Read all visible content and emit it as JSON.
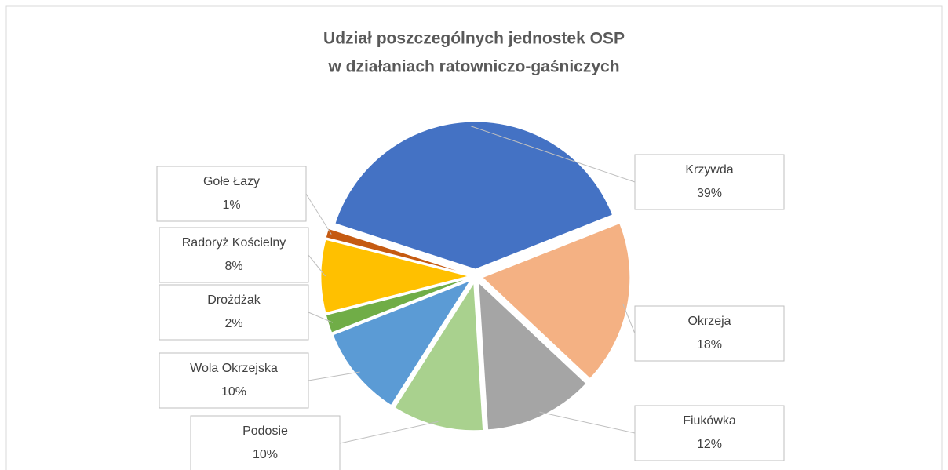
{
  "chart_data": {
    "type": "pie",
    "title": [
      "Udział poszczególnych jednostek OSP",
      "w działaniach ratowniczo-gaśniczych"
    ],
    "categories": [
      "Krzywda",
      "Okrzeja",
      "Fiukówka",
      "Podosie",
      "Wola Okrzejska",
      "Drożdżak",
      "Radoryż Kościelny",
      "Gołe Łazy"
    ],
    "values": [
      39,
      18,
      12,
      10,
      10,
      2,
      8,
      1
    ],
    "value_labels": [
      "39%",
      "18%",
      "12%",
      "10%",
      "10%",
      "2%",
      "8%",
      "1%"
    ],
    "colors": [
      "#4472c4",
      "#f4b183",
      "#a5a5a5",
      "#a9d18e",
      "#5b9bd5",
      "#70ad47",
      "#ffc000",
      "#c55a11"
    ]
  }
}
